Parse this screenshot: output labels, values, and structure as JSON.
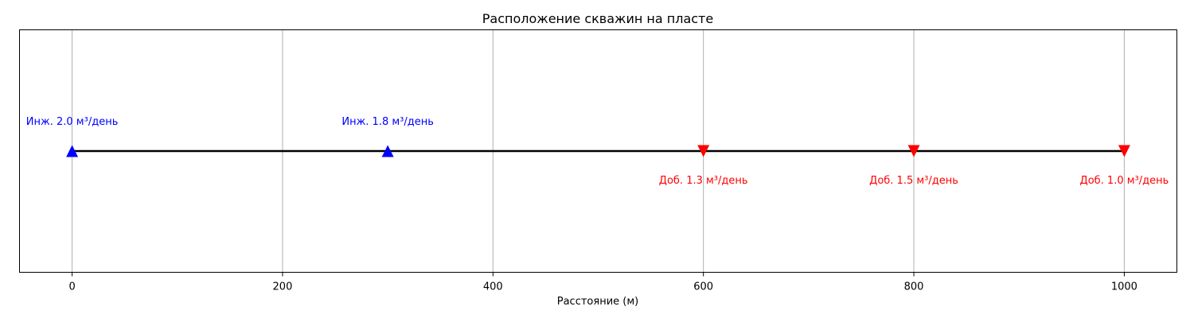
{
  "chart_data": {
    "type": "scatter",
    "title": "Расположение скважин на пласте",
    "xlabel": "Расстояние (м)",
    "ylabel": "",
    "xlim": [
      -50,
      1050
    ],
    "xticks": [
      0,
      200,
      400,
      600,
      800,
      1000
    ],
    "grid": "vertical",
    "line": {
      "x": [
        0,
        1000
      ],
      "color": "#000000"
    },
    "wells": [
      {
        "kind": "injector",
        "x": 0,
        "label": "Инж. 2.0 м³/день",
        "color": "#0000ff",
        "marker": "triangle-up",
        "label_position": "above"
      },
      {
        "kind": "injector",
        "x": 300,
        "label": "Инж. 1.8 м³/день",
        "color": "#0000ff",
        "marker": "triangle-up",
        "label_position": "above"
      },
      {
        "kind": "producer",
        "x": 600,
        "label": "Доб. 1.3 м³/день",
        "color": "#ff0000",
        "marker": "triangle-down",
        "label_position": "below"
      },
      {
        "kind": "producer",
        "x": 800,
        "label": "Доб. 1.5 м³/день",
        "color": "#ff0000",
        "marker": "triangle-down",
        "label_position": "below"
      },
      {
        "kind": "producer",
        "x": 1000,
        "label": "Доб. 1.0 м³/день",
        "color": "#ff0000",
        "marker": "triangle-down",
        "label_position": "below"
      }
    ]
  }
}
